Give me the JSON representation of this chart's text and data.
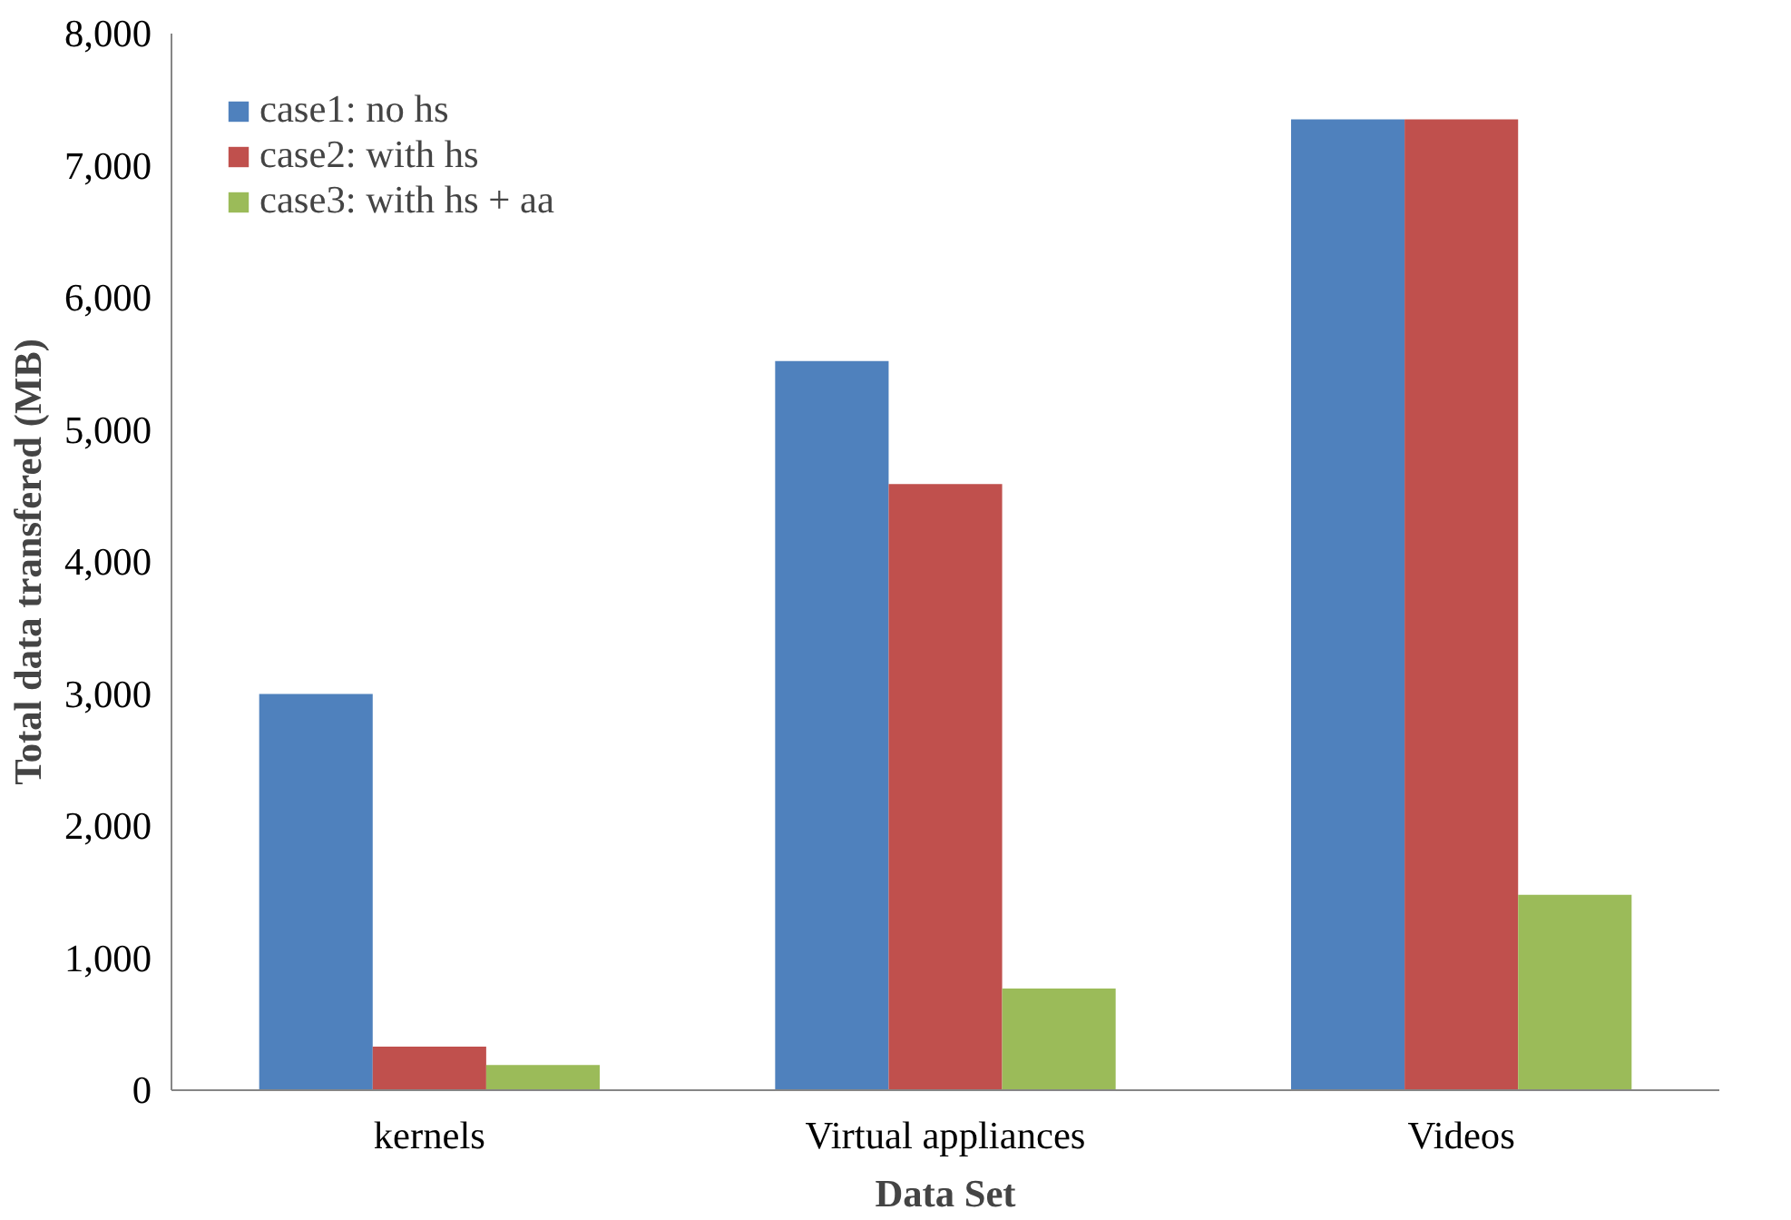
{
  "chart_data": {
    "type": "bar",
    "xlabel": "Data Set",
    "ylabel": "Total data transfered (MB)",
    "categories": [
      "kernels",
      "Virtual appliances",
      "Videos"
    ],
    "series": [
      {
        "name": "case1: no hs",
        "color": "#4f81bd",
        "values": [
          3000,
          5520,
          7350
        ]
      },
      {
        "name": "case2: with hs",
        "color": "#c0504d",
        "values": [
          330,
          4590,
          7350
        ]
      },
      {
        "name": "case3: with hs + aa",
        "color": "#9bbb59",
        "values": [
          190,
          770,
          1480
        ]
      }
    ],
    "ylim": [
      0,
      8000
    ],
    "yticks": [
      {
        "value": 0,
        "label": "0"
      },
      {
        "value": 1000,
        "label": "1,000"
      },
      {
        "value": 2000,
        "label": "2,000"
      },
      {
        "value": 3000,
        "label": "3,000"
      },
      {
        "value": 4000,
        "label": "4,000"
      },
      {
        "value": 5000,
        "label": "5,000"
      },
      {
        "value": 6000,
        "label": "6,000"
      },
      {
        "value": 7000,
        "label": "7,000"
      },
      {
        "value": 8000,
        "label": "8,000"
      }
    ],
    "grid": false,
    "legend": "top left"
  }
}
